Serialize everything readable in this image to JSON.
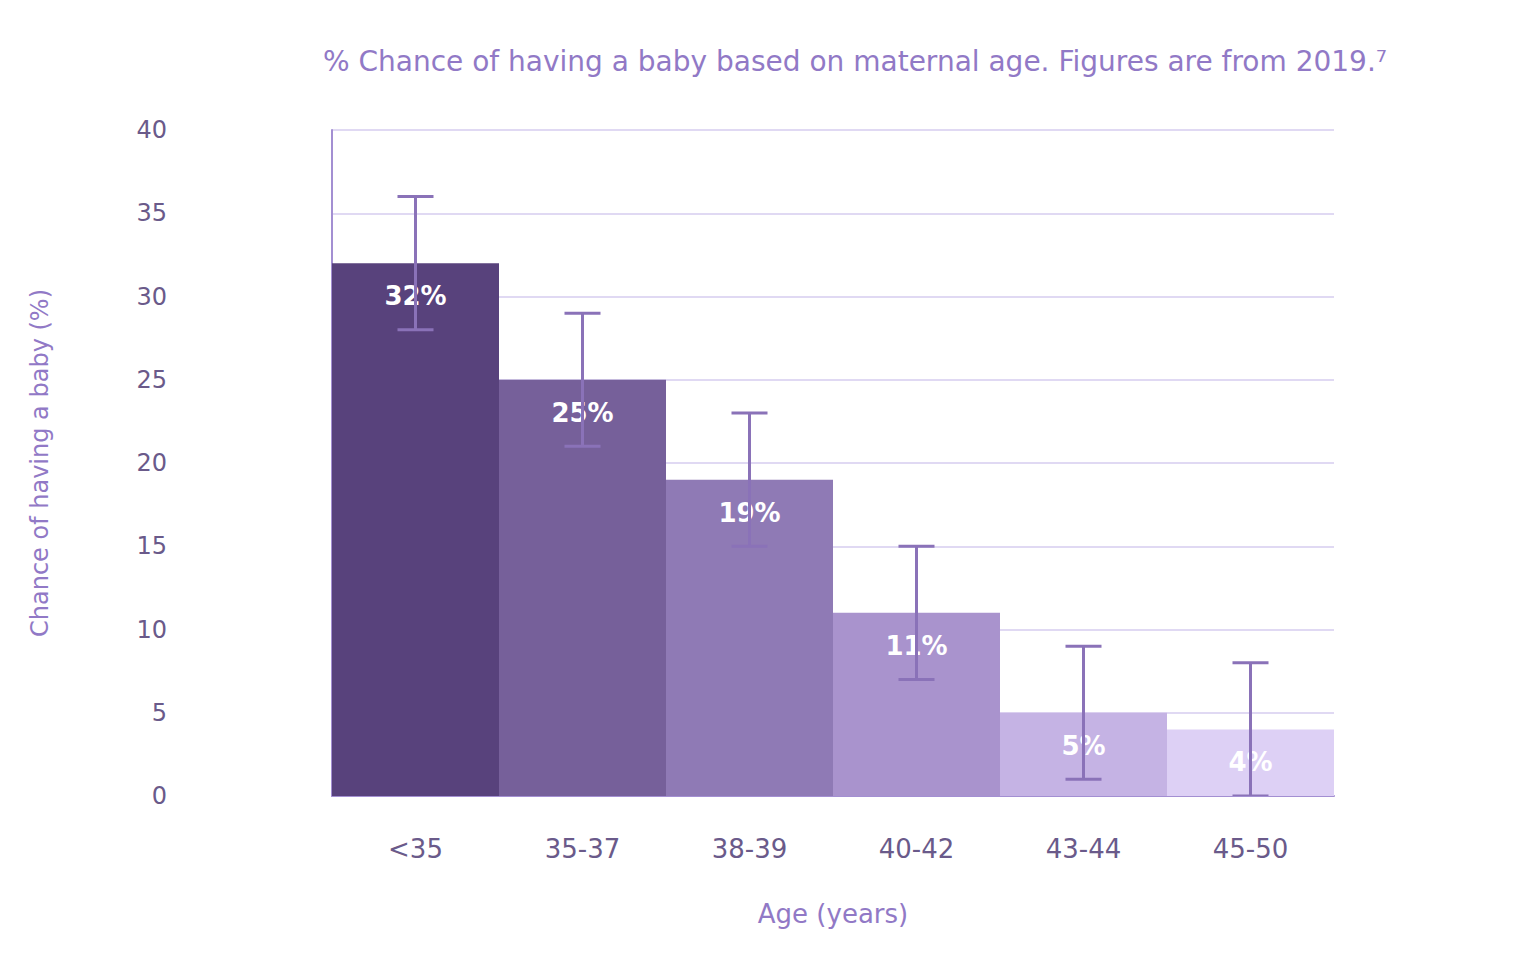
{
  "chart_data": {
    "type": "bar",
    "title": "% Chance of having a baby based on maternal age. Figures are from 2019.⁷",
    "x_label": "Age (years)",
    "y_label": "Chance of having a baby (%)",
    "categories": [
      "<35",
      "35-37",
      "38-39",
      "40-42",
      "43-44",
      "45-50"
    ],
    "values": [
      32,
      25,
      19,
      11,
      5,
      4
    ],
    "value_labels": [
      "32%",
      "25%",
      "19%",
      "11%",
      "5%",
      "4%"
    ],
    "colors": [
      "#58427c",
      "#76609a",
      "#8f7ab5",
      "#a993cd",
      "#c5b3e4",
      "#ddd0f5"
    ],
    "error_low": [
      28,
      21,
      15,
      7,
      1,
      0
    ],
    "error_high": [
      36,
      29,
      23,
      15,
      9,
      8
    ],
    "ylim": [
      0,
      40
    ],
    "yticks": [
      0,
      5,
      10,
      15,
      20,
      25,
      30,
      35,
      40
    ],
    "grid": true,
    "data_labels": true
  }
}
